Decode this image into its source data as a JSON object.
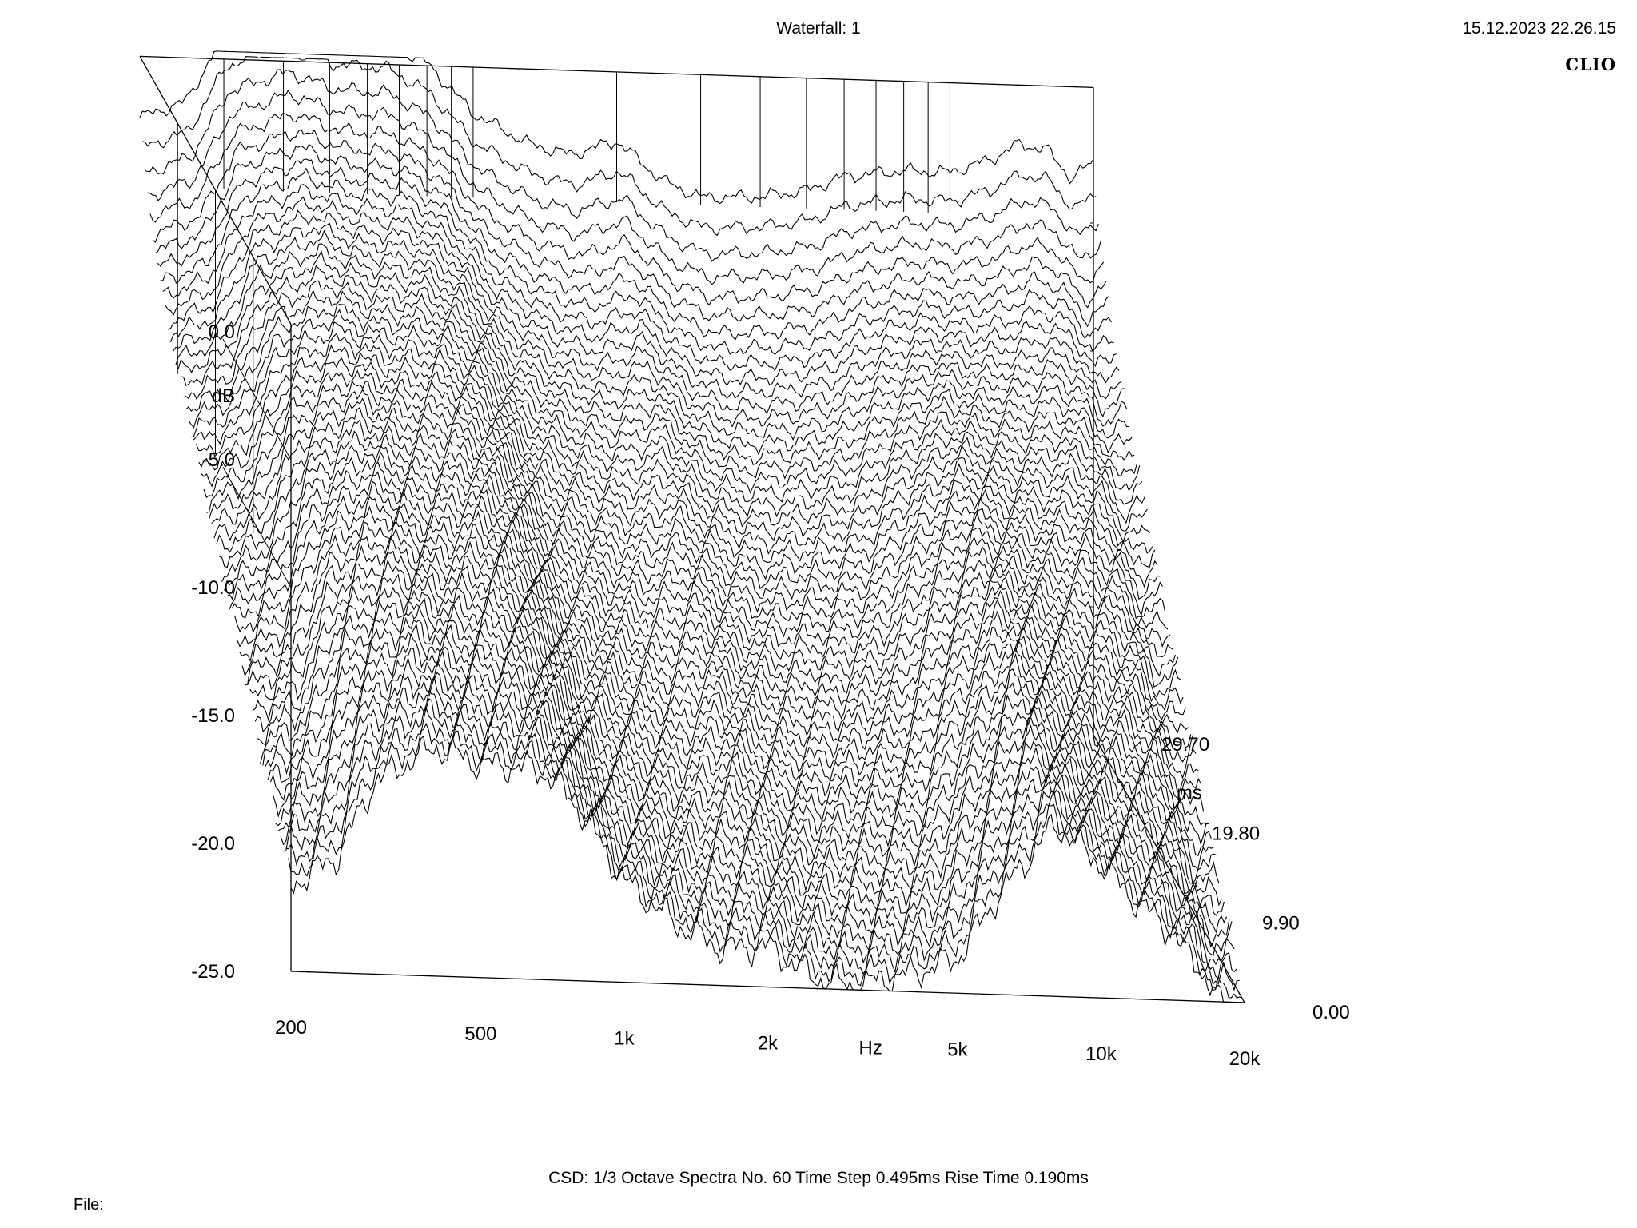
{
  "header": {
    "title": "Waterfall: 1",
    "datetime": "15.12.2023 22.26.15",
    "brand": "CLIO"
  },
  "footer": {
    "text": "CSD:   1/3 Octave   Spectra No. 60   Time Step 0.495ms   Rise Time 0.190ms"
  },
  "file": {
    "label": "File:"
  },
  "chart_data": {
    "type": "waterfall",
    "title": "Waterfall: 1",
    "z_label": "dB",
    "x_label": "Hz",
    "t_label": "ms",
    "z_range": [
      -25,
      0
    ],
    "x_range": [
      200,
      20000
    ],
    "x_scale": "log",
    "t_range": [
      0,
      29.7
    ],
    "z_ticks": [
      "0.0",
      "-5.0",
      "-10.0",
      "-15.0",
      "-20.0",
      "-25.0"
    ],
    "x_ticks": [
      {
        "value": 200,
        "label": "200"
      },
      {
        "value": 500,
        "label": "500"
      },
      {
        "value": 1000,
        "label": "1k"
      },
      {
        "value": 2000,
        "label": "2k"
      },
      {
        "value": 5000,
        "label": "5k"
      },
      {
        "value": 10000,
        "label": "10k"
      },
      {
        "value": 20000,
        "label": "20k"
      }
    ],
    "t_ticks": [
      {
        "value": 0,
        "label": "0.00"
      },
      {
        "value": 9.9,
        "label": "9.90"
      },
      {
        "value": 19.8,
        "label": "19.80"
      },
      {
        "value": 29.7,
        "label": "29.70"
      }
    ],
    "spectra_count": 60,
    "time_step_ms": 0.495,
    "rise_time_ms": 0.19,
    "smoothing": "1/3 Octave",
    "spectrum_t0": [
      {
        "f": 200,
        "db": -2.1
      },
      {
        "f": 250,
        "db": -1.4
      },
      {
        "f": 300,
        "db": 1.2
      },
      {
        "f": 400,
        "db": 2.0
      },
      {
        "f": 500,
        "db": 1.4
      },
      {
        "f": 650,
        "db": 1.3
      },
      {
        "f": 800,
        "db": 0.4
      },
      {
        "f": 1000,
        "db": -1.5
      },
      {
        "f": 1300,
        "db": -2.6
      },
      {
        "f": 1600,
        "db": -3.0
      },
      {
        "f": 2000,
        "db": -2.4
      },
      {
        "f": 2500,
        "db": -3.9
      },
      {
        "f": 3000,
        "db": -4.5
      },
      {
        "f": 4000,
        "db": -4.4
      },
      {
        "f": 5000,
        "db": -4.1
      },
      {
        "f": 6000,
        "db": -3.5
      },
      {
        "f": 8000,
        "db": -3.2
      },
      {
        "f": 10000,
        "db": -3.2
      },
      {
        "f": 12000,
        "db": -2.7
      },
      {
        "f": 14000,
        "db": -2.0
      },
      {
        "f": 16000,
        "db": -2.2
      },
      {
        "f": 18000,
        "db": -3.3
      },
      {
        "f": 20000,
        "db": -2.6
      }
    ],
    "decay_db_per_ms": [
      {
        "f": 200,
        "rate": 0.55
      },
      {
        "f": 400,
        "rate": 0.5
      },
      {
        "f": 700,
        "rate": 0.5
      },
      {
        "f": 1000,
        "rate": 0.55
      },
      {
        "f": 2000,
        "rate": 0.6
      },
      {
        "f": 5000,
        "rate": 0.55
      },
      {
        "f": 8000,
        "rate": 0.4
      },
      {
        "f": 10000,
        "rate": 0.45
      },
      {
        "f": 15000,
        "rate": 0.6
      },
      {
        "f": 20000,
        "rate": 0.65
      }
    ]
  }
}
